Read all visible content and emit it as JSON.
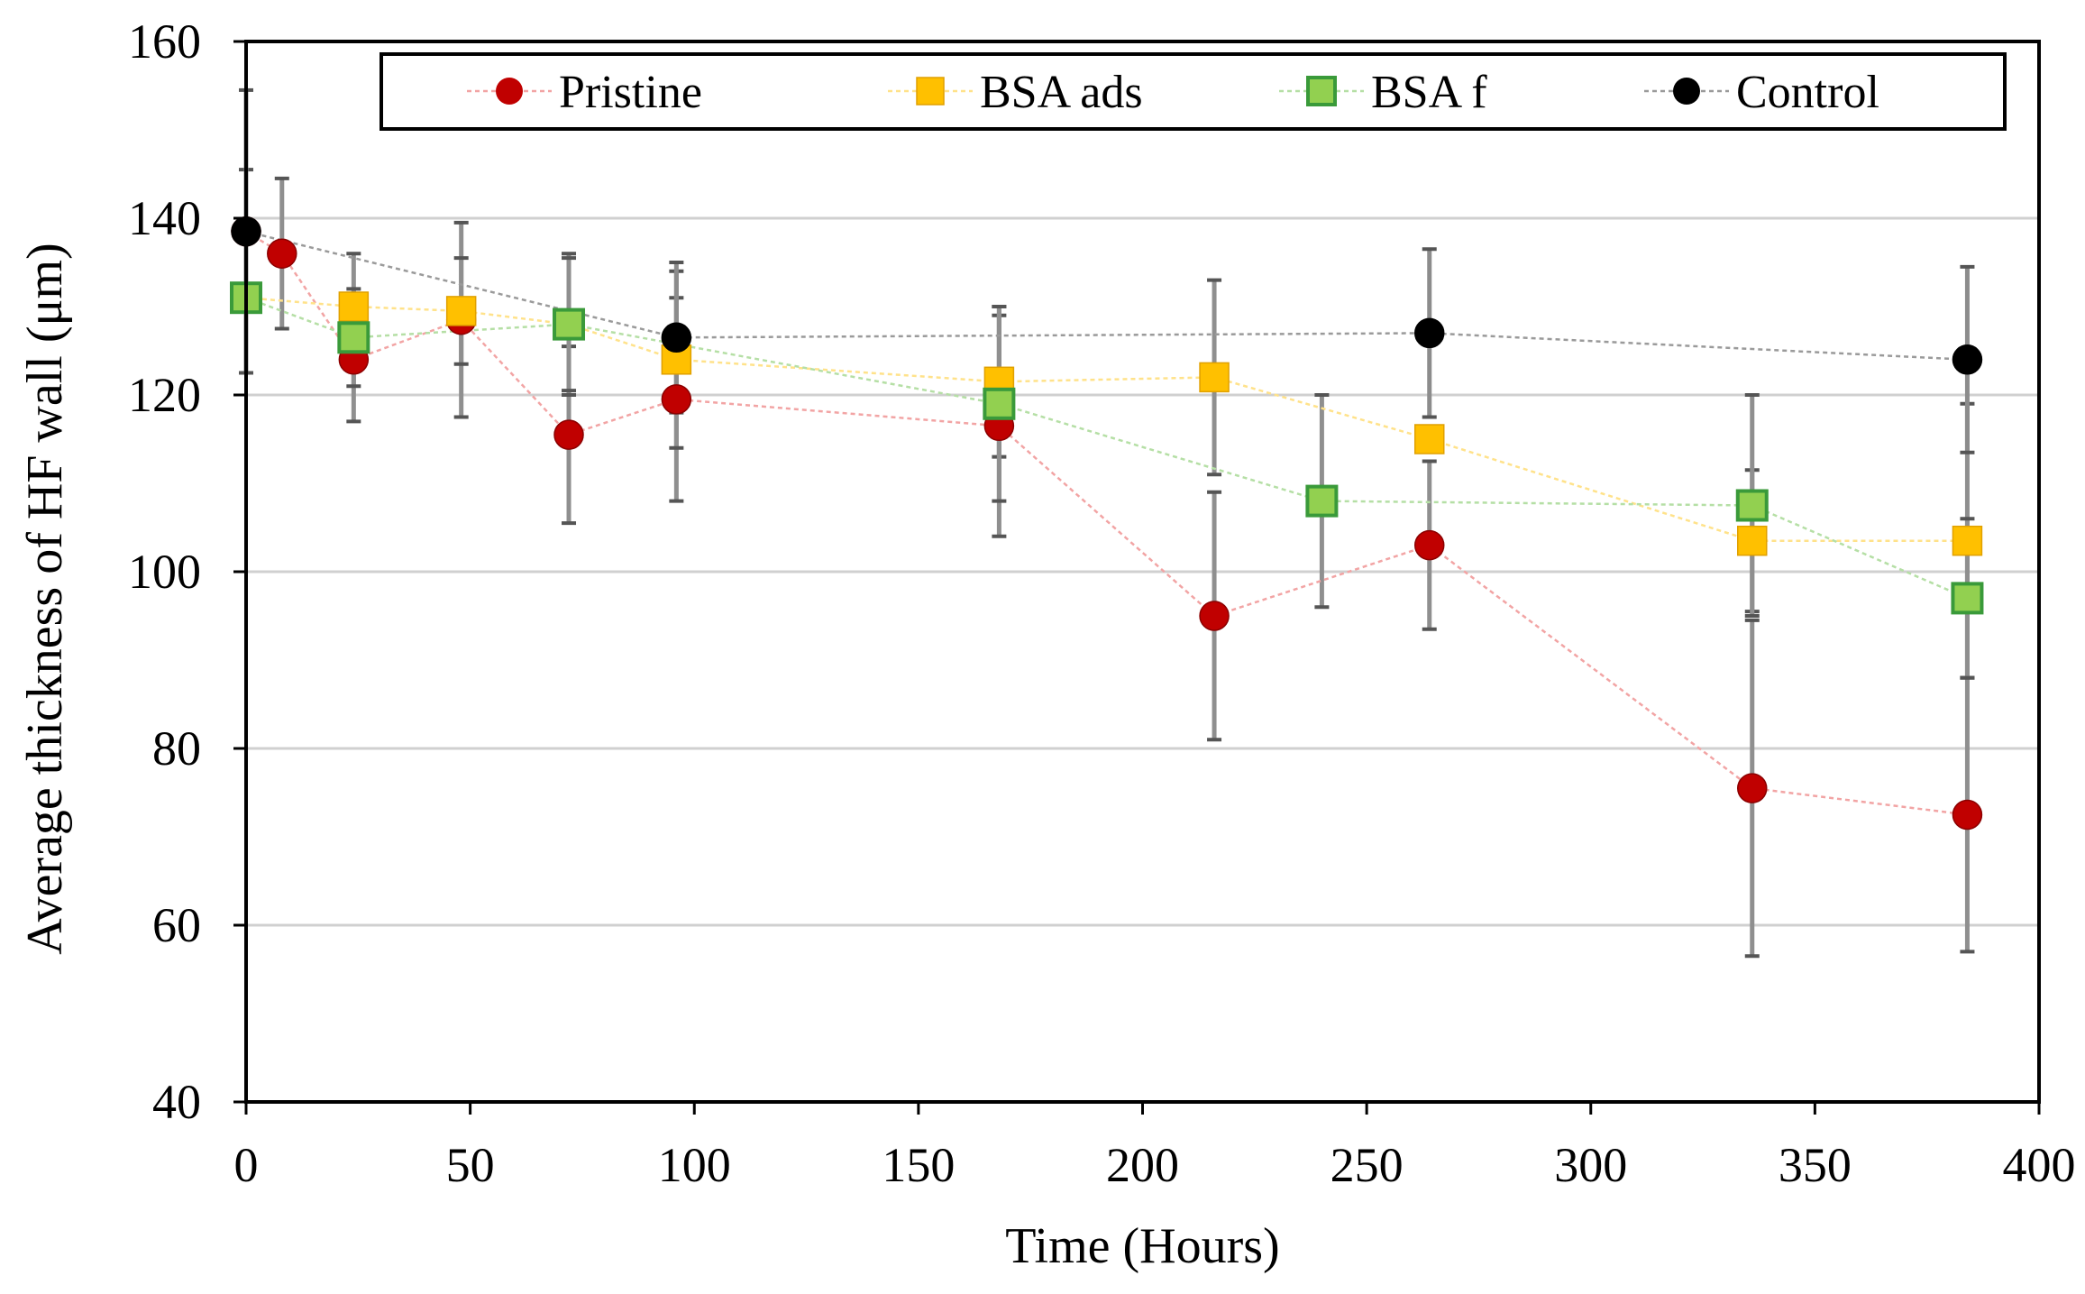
{
  "chart_data": {
    "type": "line",
    "title": "",
    "xlabel": "Time (Hours)",
    "ylabel": "Average thickness of HF wall (μm)",
    "xlim": [
      0,
      400
    ],
    "ylim": [
      40,
      160
    ],
    "xticks": [
      0,
      50,
      100,
      150,
      200,
      250,
      300,
      350,
      400
    ],
    "yticks": [
      40,
      60,
      80,
      100,
      120,
      140,
      160
    ],
    "grid": "horizontal",
    "legend_position": "top",
    "series": [
      {
        "name": "Pristine",
        "marker": "circle",
        "color": "#c00000",
        "line_color": "#f2a4a4",
        "points": [
          {
            "x": 0,
            "y": 138.5,
            "err": 7
          },
          {
            "x": 8,
            "y": 136,
            "err": 8.5
          },
          {
            "x": 24,
            "y": 124,
            "err": 7
          },
          {
            "x": 48,
            "y": 128.5,
            "err": 11
          },
          {
            "x": 72,
            "y": 115.5,
            "err": 10
          },
          {
            "x": 96,
            "y": 119.5,
            "err": 11.5
          },
          {
            "x": 168,
            "y": 116.5,
            "err": 12.5
          },
          {
            "x": 216,
            "y": 95,
            "err": 14
          },
          {
            "x": 264,
            "y": 103,
            "err": 9.5
          },
          {
            "x": 336,
            "y": 75.5,
            "err": 19
          },
          {
            "x": 384,
            "y": 72.5,
            "err": 15.5
          }
        ]
      },
      {
        "name": "BSA ads",
        "marker": "square",
        "color": "#ffc000",
        "line_color": "#ffe28a",
        "points": [
          {
            "x": 0,
            "y": 131,
            "err": 0
          },
          {
            "x": 24,
            "y": 130,
            "err": 6
          },
          {
            "x": 48,
            "y": 129.5,
            "err": 6
          },
          {
            "x": 72,
            "y": 128,
            "err": 8
          },
          {
            "x": 96,
            "y": 124,
            "err": 10
          },
          {
            "x": 168,
            "y": 121.5,
            "err": 8.5
          },
          {
            "x": 216,
            "y": 122,
            "err": 11
          },
          {
            "x": 264,
            "y": 115,
            "err": 0
          },
          {
            "x": 336,
            "y": 103.5,
            "err": 8
          },
          {
            "x": 384,
            "y": 103.5,
            "err": 15.5
          }
        ]
      },
      {
        "name": "BSA f",
        "marker": "square",
        "color": "#92d050",
        "line_color": "#b5dfa5",
        "points": [
          {
            "x": 0,
            "y": 131,
            "err": 0
          },
          {
            "x": 24,
            "y": 126.5,
            "err": 5.5
          },
          {
            "x": 72,
            "y": 128,
            "err": 7.5
          },
          {
            "x": 168,
            "y": 119,
            "err": 11
          },
          {
            "x": 240,
            "y": 108,
            "err": 12
          },
          {
            "x": 336,
            "y": 107.5,
            "err": 12.5
          },
          {
            "x": 384,
            "y": 97,
            "err": 9
          }
        ]
      },
      {
        "name": "Control",
        "marker": "circle",
        "color": "#000000",
        "line_color": "#9a9a9a",
        "points": [
          {
            "x": 0,
            "y": 138.5,
            "err": 16
          },
          {
            "x": 96,
            "y": 126.5,
            "err": 8.5
          },
          {
            "x": 264,
            "y": 127,
            "err": 9.5
          },
          {
            "x": 384,
            "y": 124,
            "err": 10.5
          }
        ]
      }
    ]
  }
}
